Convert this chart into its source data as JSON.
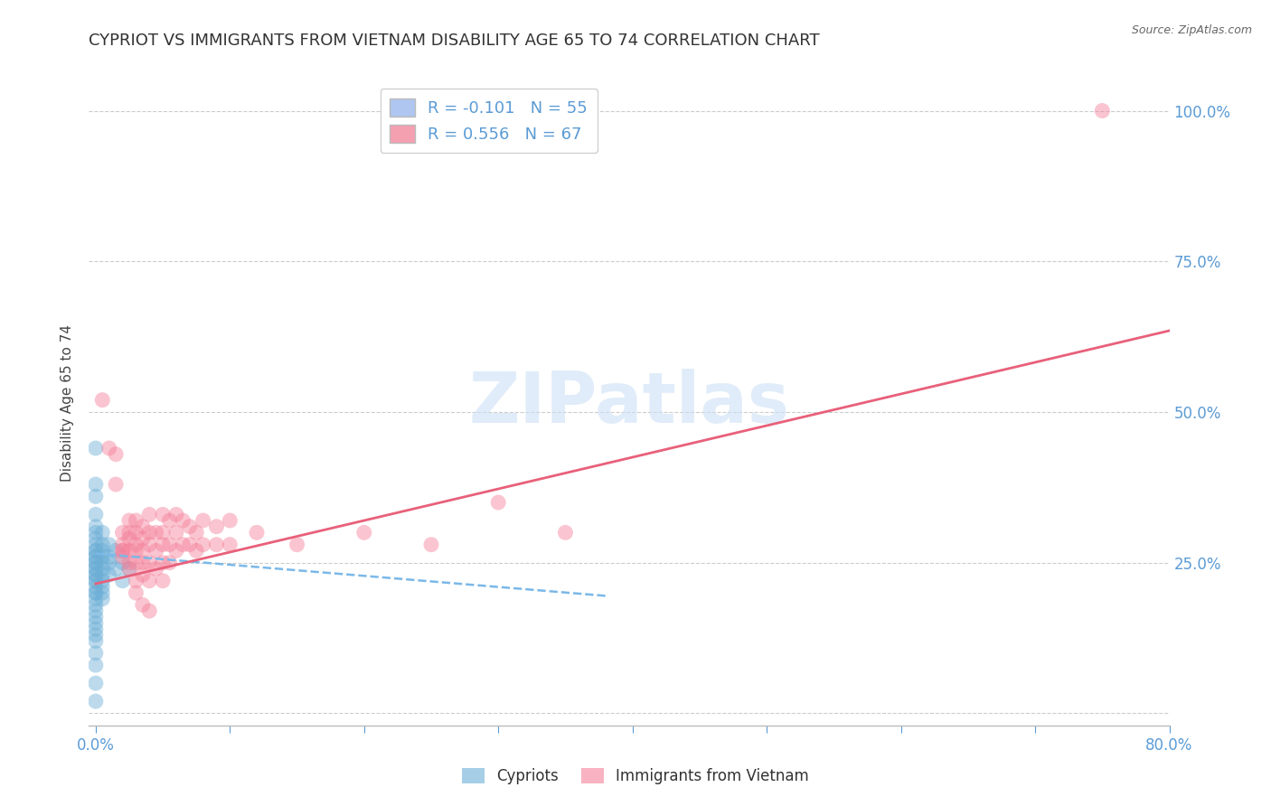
{
  "title": "CYPRIOT VS IMMIGRANTS FROM VIETNAM DISABILITY AGE 65 TO 74 CORRELATION CHART",
  "source": "Source: ZipAtlas.com",
  "ylabel": "Disability Age 65 to 74",
  "xlabel": "",
  "xlim": [
    -0.005,
    0.8
  ],
  "ylim": [
    -0.02,
    1.05
  ],
  "yticks": [
    0.0,
    0.25,
    0.5,
    0.75,
    1.0
  ],
  "ytick_labels": [
    "",
    "25.0%",
    "50.0%",
    "75.0%",
    "100.0%"
  ],
  "xticks": [
    0.0,
    0.1,
    0.2,
    0.3,
    0.4,
    0.5,
    0.6,
    0.7,
    0.8
  ],
  "xtick_labels": [
    "0.0%",
    "",
    "",
    "",
    "",
    "",
    "",
    "",
    "80.0%"
  ],
  "watermark": "ZIPatlas",
  "legend_entries": [
    {
      "label": "R = -0.101   N = 55",
      "color": "#aec6f0"
    },
    {
      "label": "R = 0.556   N = 67",
      "color": "#f4a0b0"
    }
  ],
  "legend_labels": [
    "Cypriots",
    "Immigrants from Vietnam"
  ],
  "cypriot_color": "#6baed6",
  "vietnam_color": "#f48099",
  "cypriot_line_color": "#7ab8e8",
  "vietnam_line_color": "#e8607a",
  "R_cypriot": -0.101,
  "N_cypriot": 55,
  "R_vietnam": 0.556,
  "N_vietnam": 67,
  "cypriot_points": [
    [
      0.0,
      0.44
    ],
    [
      0.0,
      0.38
    ],
    [
      0.0,
      0.36
    ],
    [
      0.0,
      0.33
    ],
    [
      0.0,
      0.31
    ],
    [
      0.0,
      0.3
    ],
    [
      0.0,
      0.29
    ],
    [
      0.0,
      0.28
    ],
    [
      0.0,
      0.27
    ],
    [
      0.0,
      0.27
    ],
    [
      0.0,
      0.26
    ],
    [
      0.0,
      0.26
    ],
    [
      0.0,
      0.25
    ],
    [
      0.0,
      0.25
    ],
    [
      0.0,
      0.24
    ],
    [
      0.0,
      0.24
    ],
    [
      0.0,
      0.23
    ],
    [
      0.0,
      0.23
    ],
    [
      0.0,
      0.22
    ],
    [
      0.0,
      0.22
    ],
    [
      0.0,
      0.21
    ],
    [
      0.0,
      0.2
    ],
    [
      0.0,
      0.2
    ],
    [
      0.0,
      0.19
    ],
    [
      0.0,
      0.18
    ],
    [
      0.0,
      0.17
    ],
    [
      0.0,
      0.16
    ],
    [
      0.0,
      0.15
    ],
    [
      0.0,
      0.14
    ],
    [
      0.0,
      0.13
    ],
    [
      0.0,
      0.12
    ],
    [
      0.0,
      0.1
    ],
    [
      0.0,
      0.08
    ],
    [
      0.0,
      0.05
    ],
    [
      0.0,
      0.02
    ],
    [
      0.005,
      0.3
    ],
    [
      0.005,
      0.28
    ],
    [
      0.005,
      0.27
    ],
    [
      0.005,
      0.26
    ],
    [
      0.005,
      0.25
    ],
    [
      0.005,
      0.24
    ],
    [
      0.005,
      0.23
    ],
    [
      0.005,
      0.22
    ],
    [
      0.005,
      0.21
    ],
    [
      0.005,
      0.2
    ],
    [
      0.005,
      0.19
    ],
    [
      0.01,
      0.28
    ],
    [
      0.01,
      0.26
    ],
    [
      0.01,
      0.25
    ],
    [
      0.01,
      0.23
    ],
    [
      0.015,
      0.27
    ],
    [
      0.015,
      0.24
    ],
    [
      0.02,
      0.25
    ],
    [
      0.02,
      0.22
    ],
    [
      0.025,
      0.24
    ]
  ],
  "vietnam_points": [
    [
      0.005,
      0.52
    ],
    [
      0.01,
      0.44
    ],
    [
      0.015,
      0.43
    ],
    [
      0.015,
      0.38
    ],
    [
      0.02,
      0.3
    ],
    [
      0.02,
      0.28
    ],
    [
      0.02,
      0.27
    ],
    [
      0.02,
      0.27
    ],
    [
      0.02,
      0.26
    ],
    [
      0.025,
      0.32
    ],
    [
      0.025,
      0.3
    ],
    [
      0.025,
      0.29
    ],
    [
      0.025,
      0.27
    ],
    [
      0.025,
      0.25
    ],
    [
      0.025,
      0.24
    ],
    [
      0.03,
      0.32
    ],
    [
      0.03,
      0.3
    ],
    [
      0.03,
      0.28
    ],
    [
      0.03,
      0.27
    ],
    [
      0.03,
      0.25
    ],
    [
      0.03,
      0.22
    ],
    [
      0.03,
      0.2
    ],
    [
      0.035,
      0.31
    ],
    [
      0.035,
      0.29
    ],
    [
      0.035,
      0.27
    ],
    [
      0.035,
      0.25
    ],
    [
      0.035,
      0.23
    ],
    [
      0.035,
      0.18
    ],
    [
      0.04,
      0.33
    ],
    [
      0.04,
      0.3
    ],
    [
      0.04,
      0.28
    ],
    [
      0.04,
      0.25
    ],
    [
      0.04,
      0.22
    ],
    [
      0.04,
      0.17
    ],
    [
      0.045,
      0.3
    ],
    [
      0.045,
      0.27
    ],
    [
      0.045,
      0.24
    ],
    [
      0.05,
      0.33
    ],
    [
      0.05,
      0.3
    ],
    [
      0.05,
      0.28
    ],
    [
      0.05,
      0.25
    ],
    [
      0.05,
      0.22
    ],
    [
      0.055,
      0.32
    ],
    [
      0.055,
      0.28
    ],
    [
      0.055,
      0.25
    ],
    [
      0.06,
      0.33
    ],
    [
      0.06,
      0.3
    ],
    [
      0.06,
      0.27
    ],
    [
      0.065,
      0.32
    ],
    [
      0.065,
      0.28
    ],
    [
      0.07,
      0.31
    ],
    [
      0.07,
      0.28
    ],
    [
      0.075,
      0.3
    ],
    [
      0.075,
      0.27
    ],
    [
      0.08,
      0.32
    ],
    [
      0.08,
      0.28
    ],
    [
      0.09,
      0.31
    ],
    [
      0.09,
      0.28
    ],
    [
      0.1,
      0.32
    ],
    [
      0.1,
      0.28
    ],
    [
      0.12,
      0.3
    ],
    [
      0.15,
      0.28
    ],
    [
      0.2,
      0.3
    ],
    [
      0.25,
      0.28
    ],
    [
      0.3,
      0.35
    ],
    [
      0.35,
      0.3
    ],
    [
      0.75,
      1.0
    ]
  ],
  "cypriot_trendline": {
    "x_start": 0.0,
    "x_end": 0.38,
    "y_start": 0.265,
    "y_end": 0.195
  },
  "vietnam_trendline": {
    "x_start": 0.0,
    "x_end": 0.8,
    "y_start": 0.215,
    "y_end": 0.635
  },
  "background_color": "#ffffff",
  "grid_color": "#cccccc",
  "axis_color": "#bbbbbb",
  "tick_color": "#5b9bd5",
  "title_fontsize": 13,
  "axis_label_fontsize": 11,
  "tick_fontsize": 12
}
